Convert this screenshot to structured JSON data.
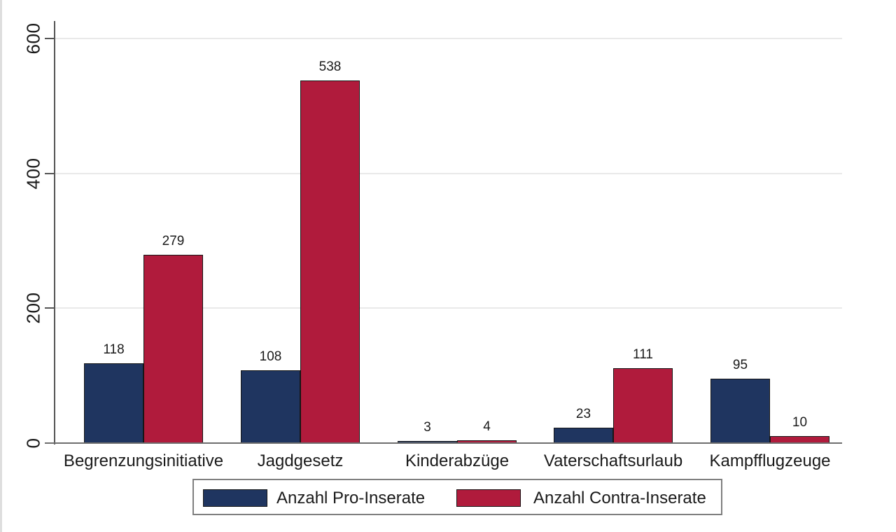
{
  "chart_data": {
    "type": "bar",
    "categories": [
      "Begrenzungsinitiative",
      "Jagdgesetz",
      "Kinderabzüge",
      "Vaterschaftsurlaub",
      "Kampfflugzeuge"
    ],
    "series": [
      {
        "name": "Anzahl Pro-Inserate",
        "color": "#1f3560",
        "values": [
          118,
          108,
          3,
          23,
          95
        ]
      },
      {
        "name": "Anzahl Contra-Inserate",
        "color": "#b01b3c",
        "values": [
          279,
          538,
          4,
          111,
          10
        ]
      }
    ],
    "bar_value_labels": [
      "118",
      "279",
      "108",
      "538",
      "3",
      "4",
      "23",
      "111",
      "95",
      "10"
    ],
    "title": "",
    "xlabel": "",
    "ylabel": "",
    "ylim": [
      0,
      600
    ],
    "yticks": [
      0,
      200,
      400,
      600
    ],
    "grid": true,
    "legend_position": "bottom"
  },
  "colors": {
    "bar_outline": "#161616",
    "axis_line": "#555555",
    "baseline": "#6e6e6e",
    "gridline": "#e9e9e9",
    "legend_border": "#7f7f7f",
    "edge_strip": "#dedede"
  }
}
